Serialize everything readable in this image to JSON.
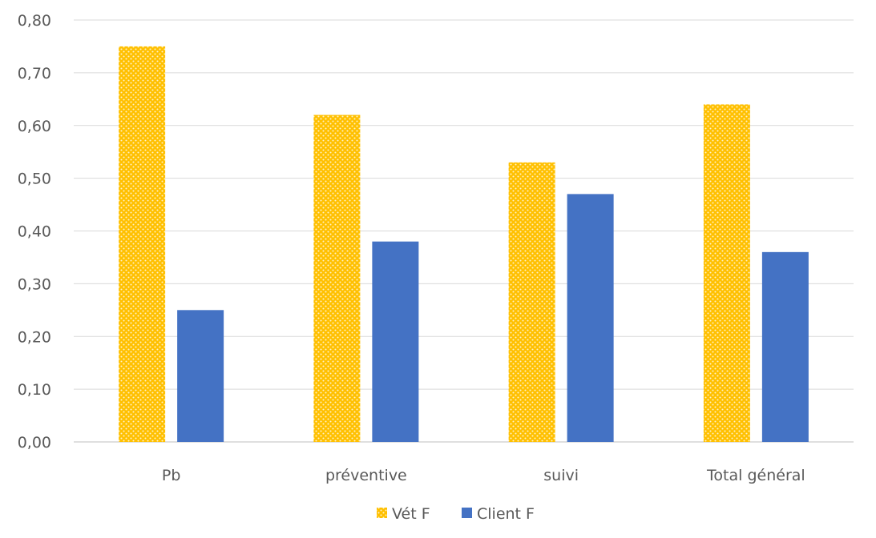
{
  "chart_data": {
    "type": "bar",
    "categories": [
      "Pb",
      "préventive",
      "suivi",
      "Total général"
    ],
    "series": [
      {
        "name": "Vét F",
        "values": [
          0.75,
          0.62,
          0.53,
          0.64
        ],
        "color": "#FFC000",
        "pattern": "dotted"
      },
      {
        "name": "Client F",
        "values": [
          0.25,
          0.38,
          0.47,
          0.36
        ],
        "color": "#4472C4",
        "pattern": "solid"
      }
    ],
    "ylim": [
      0,
      0.8
    ],
    "yticks": [
      "0,00",
      "0,10",
      "0,20",
      "0,30",
      "0,40",
      "0,50",
      "0,60",
      "0,70",
      "0,80"
    ],
    "grid": true,
    "legend_position": "bottom-center"
  }
}
